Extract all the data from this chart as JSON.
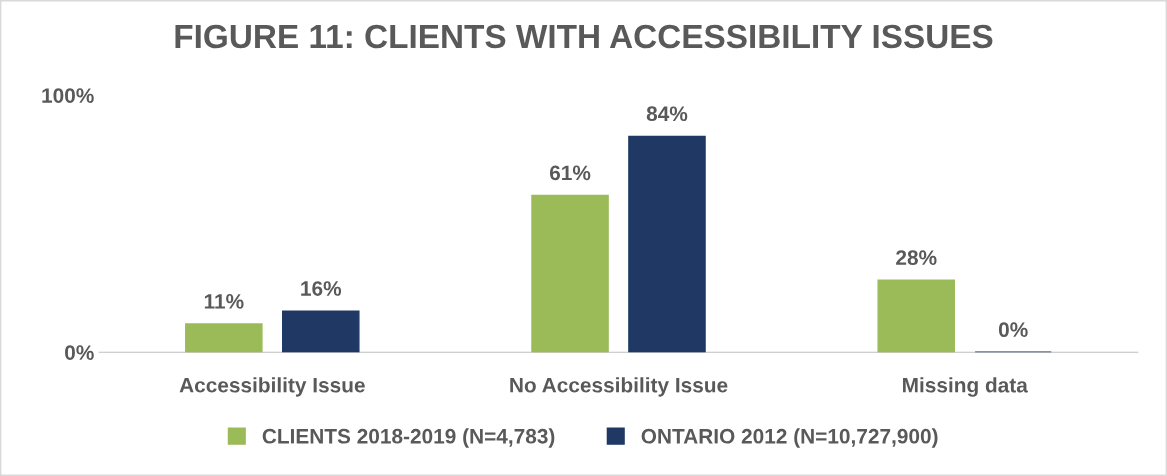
{
  "chart_data": {
    "type": "bar",
    "title": "FIGURE 11: CLIENTS WITH ACCESSIBILITY ISSUES",
    "categories": [
      "Accessibility Issue",
      "No Accessibility Issue",
      "Missing data"
    ],
    "series": [
      {
        "name": "CLIENTS 2018-2019 (N=4,783)",
        "color": "#9bbb59",
        "values": [
          11,
          61,
          28
        ],
        "value_labels": [
          "11%",
          "61%",
          "28%"
        ]
      },
      {
        "name": "ONTARIO 2012 (N=10,727,900)",
        "color": "#1f3864",
        "values": [
          16,
          84,
          0
        ],
        "value_labels": [
          "16%",
          "84%",
          "0%"
        ]
      }
    ],
    "ylim": [
      0,
      100
    ],
    "yticks": [
      {
        "value": 0,
        "label": "0%"
      },
      {
        "value": 100,
        "label": "100%"
      }
    ],
    "grid": false,
    "legend": "bottom"
  }
}
